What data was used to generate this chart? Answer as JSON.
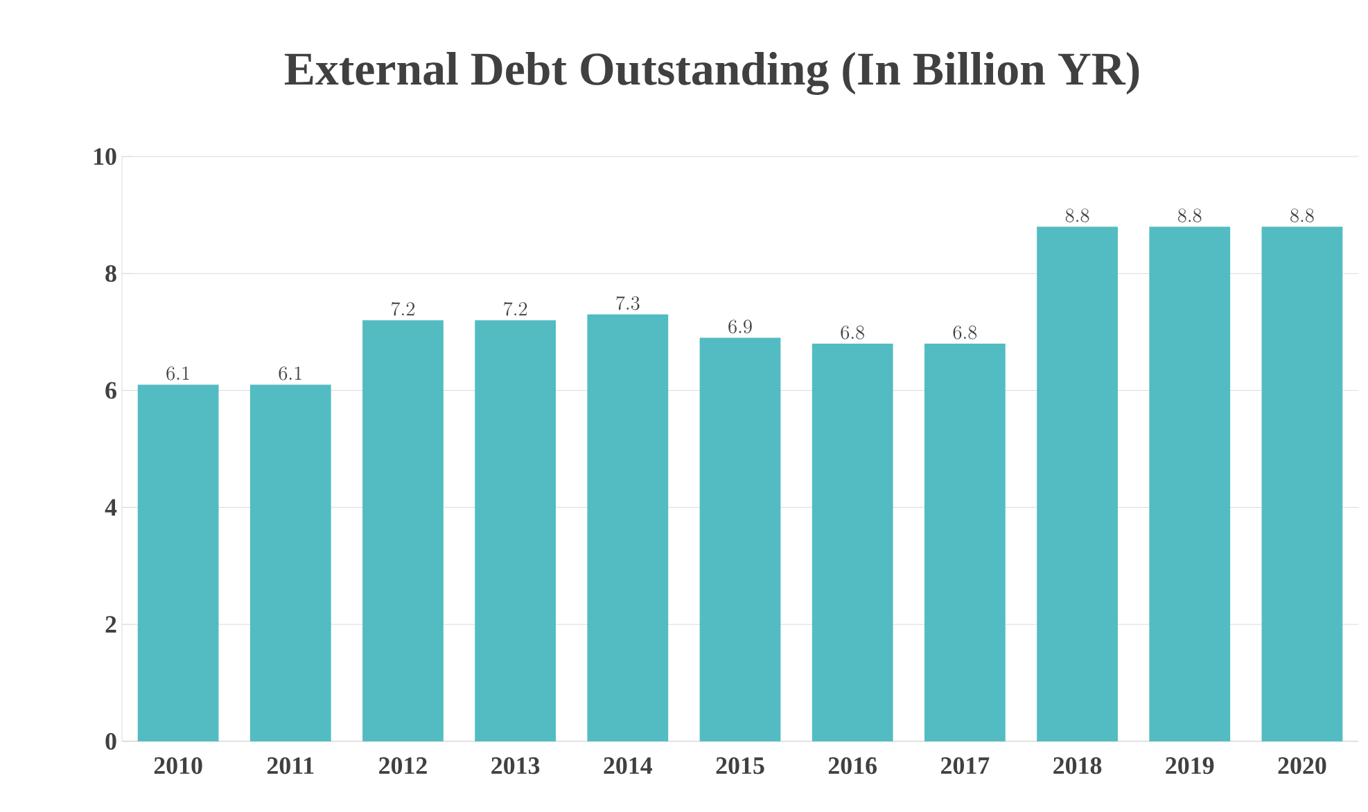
{
  "chart_data": {
    "type": "bar",
    "title": "External Debt Outstanding (In Billion YR)",
    "categories": [
      "2010",
      "2011",
      "2012",
      "2013",
      "2014",
      "2015",
      "2016",
      "2017",
      "2018",
      "2019",
      "2020"
    ],
    "values": [
      6.1,
      6.1,
      7.2,
      7.2,
      7.3,
      6.9,
      6.8,
      6.8,
      8.8,
      8.8,
      8.8
    ],
    "color": "#52bcc2",
    "ylim": [
      0,
      10
    ],
    "yticks": [
      0,
      2,
      4,
      6,
      8,
      10
    ],
    "grid": "y",
    "data_labels": true
  }
}
